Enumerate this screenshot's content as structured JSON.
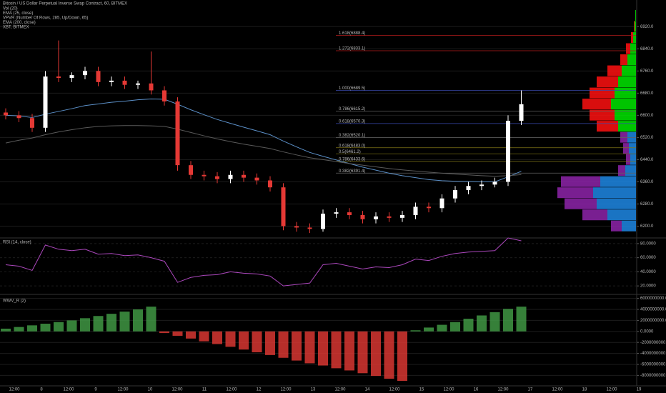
{
  "chart_data": [
    {
      "type": "candlestick",
      "title": "Bitcoin / US Dollar Perpetual Inverse Swap Contract, 60, BITMEX",
      "indicators": [
        "Vol (20)",
        "EMA (25, close)",
        "VPVR (Number Of Rows, 285, Up/Down, 65)",
        "EMA (200, close)",
        "XBT, BITMEX"
      ],
      "time_labels": [
        "12:00",
        "8",
        "12:00",
        "9",
        "12:00",
        "10",
        "12:00",
        "11",
        "12:00",
        "12",
        "12:00",
        "13",
        "12:00",
        "14",
        "12:00",
        "15",
        "12:00",
        "16",
        "12:00",
        "17",
        "12:00",
        "18",
        "12:00",
        "19"
      ],
      "open": [
        6610,
        6600,
        6590,
        6555,
        6740,
        6735,
        6745,
        6760,
        6720,
        6725,
        6710,
        6715,
        6690,
        6650,
        6420,
        6385,
        6380,
        6370,
        6385,
        6375,
        6365,
        6340,
        6200,
        6195,
        6190,
        6245,
        6250,
        6240,
        6225,
        6235,
        6230,
        6240,
        6270,
        6265,
        6300,
        6330,
        6345,
        6350,
        6360,
        6580
      ],
      "high": [
        6625,
        6615,
        6605,
        6760,
        6870,
        6755,
        6775,
        6775,
        6740,
        6740,
        6725,
        6830,
        6705,
        6665,
        6435,
        6400,
        6395,
        6400,
        6400,
        6390,
        6380,
        6355,
        6215,
        6210,
        6260,
        6265,
        6265,
        6255,
        6250,
        6250,
        6255,
        6285,
        6285,
        6315,
        6345,
        6360,
        6365,
        6375,
        6600,
        6690
      ],
      "low": [
        6585,
        6575,
        6540,
        6540,
        6720,
        6720,
        6730,
        6705,
        6705,
        6695,
        6695,
        6675,
        6635,
        6400,
        6370,
        6365,
        6355,
        6355,
        6360,
        6350,
        6325,
        6185,
        6180,
        6175,
        6180,
        6230,
        6225,
        6210,
        6210,
        6215,
        6215,
        6225,
        6250,
        6250,
        6285,
        6315,
        6330,
        6340,
        6345,
        6565
      ],
      "close": [
        6600,
        6590,
        6555,
        6740,
        6735,
        6745,
        6760,
        6720,
        6725,
        6710,
        6715,
        6690,
        6650,
        6420,
        6385,
        6380,
        6370,
        6385,
        6375,
        6365,
        6340,
        6200,
        6195,
        6190,
        6245,
        6250,
        6240,
        6225,
        6235,
        6230,
        6240,
        6270,
        6265,
        6300,
        6330,
        6345,
        6350,
        6360,
        6580,
        6640
      ],
      "up_color": "#ffffff",
      "down_color": "#e53935",
      "series": [
        {
          "name": "EMA (25, close)",
          "color": "#5b8fc7",
          "values": [
            6600,
            6598,
            6592,
            6604,
            6614,
            6624,
            6635,
            6641,
            6647,
            6651,
            6656,
            6659,
            6658,
            6640,
            6620,
            6602,
            6585,
            6571,
            6557,
            6544,
            6530,
            6507,
            6486,
            6466,
            6452,
            6439,
            6426,
            6413,
            6402,
            6391,
            6382,
            6375,
            6368,
            6364,
            6362,
            6361,
            6360,
            6360,
            6378,
            6398
          ]
        },
        {
          "name": "EMA (200, close)",
          "color": "#5a5a5a",
          "values": [
            6500,
            6510,
            6518,
            6530,
            6540,
            6548,
            6555,
            6560,
            6562,
            6563,
            6563,
            6562,
            6560,
            6550,
            6538,
            6526,
            6515,
            6505,
            6496,
            6488,
            6480,
            6468,
            6457,
            6447,
            6440,
            6433,
            6426,
            6420,
            6414,
            6408,
            6403,
            6399,
            6395,
            6391,
            6388,
            6385,
            6382,
            6380,
            6382,
            6386
          ]
        }
      ],
      "vpvr": {
        "prices": [
          6200,
          6240,
          6280,
          6320,
          6360,
          6400,
          6440,
          6480,
          6520,
          6560,
          6600,
          6640,
          6680,
          6720,
          6760,
          6800,
          6840,
          6880,
          6920,
          6960
        ],
        "up": [
          20,
          40,
          55,
          60,
          50,
          15,
          8,
          10,
          12,
          25,
          30,
          35,
          30,
          25,
          20,
          12,
          8,
          4,
          2,
          1
        ],
        "down": [
          15,
          35,
          45,
          50,
          55,
          10,
          6,
          8,
          10,
          30,
          35,
          40,
          35,
          30,
          20,
          10,
          6,
          3,
          1,
          0
        ],
        "up_color": "#00e600",
        "down_color": "#ff1010",
        "va_up_color": "#1e88e5",
        "va_down_color": "#8e24aa",
        "va_range": [
          6180,
          6540
        ]
      },
      "levels": [
        {
          "value": 6888.4,
          "label": "1.618(6888.4)",
          "color": "#b71c1c"
        },
        {
          "value": 6833.1,
          "label": "1.272(6833.1)",
          "color": "#b71c1c"
        },
        {
          "value": 6689.5,
          "label": "1.000(6689.5)",
          "color": "#3949ab"
        },
        {
          "value": 6615.2,
          "label": "0.786(6615.2)",
          "color": "#616161"
        },
        {
          "value": 6570.3,
          "label": "0.618(6570.3)",
          "color": "#3949ab"
        },
        {
          "value": 6520.1,
          "label": "0.382(6520.1)",
          "color": "#616161"
        },
        {
          "value": 6483.0,
          "label": "0.618(6483.0)",
          "color": "#827717"
        },
        {
          "value": 6461.2,
          "label": "0.5(6461.2)",
          "color": "#827717"
        },
        {
          "value": 6433.6,
          "label": "0.786(6433.6)",
          "color": "#827717"
        },
        {
          "value": 6391.4,
          "label": "0.382(6391.4)",
          "color": "#616161"
        }
      ],
      "ylim": [
        6160,
        6980
      ],
      "yticks": [
        {
          "value": 6200,
          "label": "6200.0"
        },
        {
          "value": 6280,
          "label": "6280.0"
        },
        {
          "value": 6360,
          "label": "6360.0"
        },
        {
          "value": 6440,
          "label": "6440.0"
        },
        {
          "value": 6520,
          "label": "6520.0"
        },
        {
          "value": 6600,
          "label": "6600.0"
        },
        {
          "value": 6680,
          "label": "6680.0"
        },
        {
          "value": 6760,
          "label": "6760.0"
        },
        {
          "value": 6840,
          "label": "6840.0"
        },
        {
          "value": 6920,
          "label": "6920.0"
        }
      ]
    },
    {
      "type": "line",
      "title": "RSI (14, close)",
      "series": [
        {
          "name": "RSI",
          "color": "#ab47bc",
          "values": [
            50,
            48,
            42,
            78,
            72,
            70,
            72,
            65,
            66,
            63,
            64,
            60,
            55,
            25,
            32,
            35,
            36,
            40,
            38,
            37,
            34,
            20,
            22,
            24,
            50,
            52,
            48,
            44,
            47,
            46,
            50,
            58,
            56,
            62,
            66,
            68,
            69,
            70,
            88,
            84
          ]
        }
      ],
      "ylim": [
        10,
        87
      ],
      "yticks": [
        {
          "value": 20,
          "label": "20.0000"
        },
        {
          "value": 40,
          "label": "40.0000"
        },
        {
          "value": 60,
          "label": "60.0000"
        },
        {
          "value": 80,
          "label": "80.0000"
        }
      ]
    },
    {
      "type": "bar",
      "title": "WWV_R (2)",
      "pos_color": "#43a047",
      "neg_color": "#e53935",
      "values": [
        500000000,
        800000000,
        1100000000,
        1400000000,
        1700000000,
        2000000000,
        2400000000,
        2800000000,
        3200000000,
        3600000000,
        4000000000,
        4500000000,
        -300000000,
        -800000000,
        -1300000000,
        -1800000000,
        -2300000000,
        -2800000000,
        -3300000000,
        -3800000000,
        -4300000000,
        -4800000000,
        -5300000000,
        -5800000000,
        -6200000000,
        -6700000000,
        -7100000000,
        -7600000000,
        -8100000000,
        -8600000000,
        -9000000000,
        200000000,
        700000000,
        1200000000,
        1700000000,
        2300000000,
        2900000000,
        3500000000,
        4100000000,
        4500000000
      ],
      "ylim": [
        -9900000000,
        6600000000
      ],
      "yticks": [
        {
          "value": -8000000000,
          "label": "-8000000000.0000"
        },
        {
          "value": -6000000000,
          "label": "-6000000000.0000"
        },
        {
          "value": -4000000000,
          "label": "-4000000000.0000"
        },
        {
          "value": -2000000000,
          "label": "-2000000000.0000"
        },
        {
          "value": 0,
          "label": "0.0000"
        },
        {
          "value": 2000000000,
          "label": "2000000000.0000"
        },
        {
          "value": 4000000000,
          "label": "4000000000.0000"
        },
        {
          "value": 6000000000,
          "label": "6000000000.0000"
        }
      ]
    }
  ]
}
